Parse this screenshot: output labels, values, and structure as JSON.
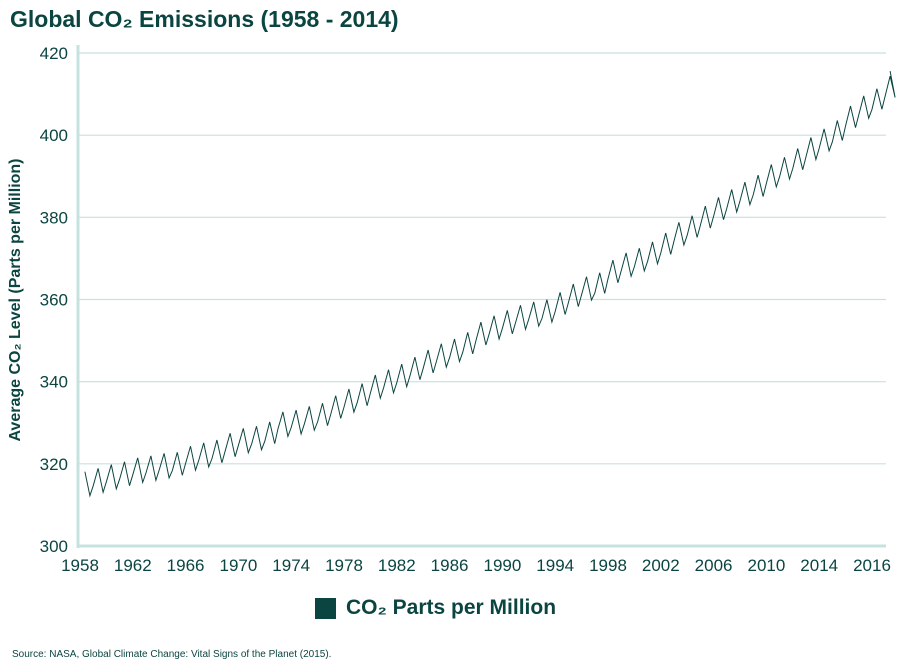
{
  "chart_data": {
    "type": "line",
    "title": "Global CO₂ Emissions (1958 - 2014)",
    "ylabel": "Average CO₂ Level (Parts per Million)",
    "xlabel": "",
    "ylim": [
      300,
      420
    ],
    "yticks": [
      "300",
      "320",
      "340",
      "360",
      "380",
      "400",
      "420"
    ],
    "xticks": [
      "1958",
      "1962",
      "1966",
      "1970",
      "1974",
      "1978",
      "1982",
      "1986",
      "1990",
      "1994",
      "1998",
      "2002",
      "2006",
      "2010",
      "2014",
      "2016"
    ],
    "grid": "horizontal",
    "legend_position": "bottom-center",
    "series": [
      {
        "name": "CO₂ Parts per Million",
        "color": "#0b4541",
        "x": [
          1958,
          1959,
          1960,
          1961,
          1962,
          1963,
          1964,
          1965,
          1966,
          1967,
          1968,
          1969,
          1970,
          1971,
          1972,
          1973,
          1974,
          1975,
          1976,
          1977,
          1978,
          1979,
          1980,
          1981,
          1982,
          1983,
          1984,
          1985,
          1986,
          1987,
          1988,
          1989,
          1990,
          1991,
          1992,
          1993,
          1994,
          1995,
          1996,
          1997,
          1998,
          1999,
          2000,
          2001,
          2002,
          2003,
          2004,
          2005,
          2006,
          2007,
          2008,
          2009,
          2010,
          2011,
          2012,
          2013,
          2014,
          2015,
          2016,
          2017,
          2018,
          2019
        ],
        "annual_mean": [
          315.2,
          316.0,
          316.9,
          317.6,
          318.5,
          319.0,
          319.6,
          320.0,
          321.4,
          322.2,
          323.0,
          324.6,
          325.7,
          326.3,
          327.5,
          329.7,
          330.2,
          331.1,
          332.0,
          333.8,
          335.4,
          336.8,
          338.8,
          340.1,
          341.5,
          343.2,
          344.9,
          346.4,
          347.6,
          349.3,
          351.7,
          353.2,
          354.5,
          355.7,
          356.5,
          357.2,
          359.0,
          361.0,
          362.7,
          363.9,
          366.8,
          368.5,
          369.7,
          371.3,
          373.5,
          376.0,
          377.7,
          380.0,
          382.1,
          384.0,
          385.8,
          387.6,
          390.1,
          391.9,
          394.1,
          396.7,
          398.8,
          401.0,
          404.4,
          406.8,
          408.7,
          411.7
        ],
        "seasonal_swing": 6
      }
    ]
  },
  "legend": {
    "label": "CO₂ Parts per Million",
    "color": "#0b4541"
  },
  "source": "Source: NASA, Global Climate Change: Vital Signs of the Planet (2015)."
}
